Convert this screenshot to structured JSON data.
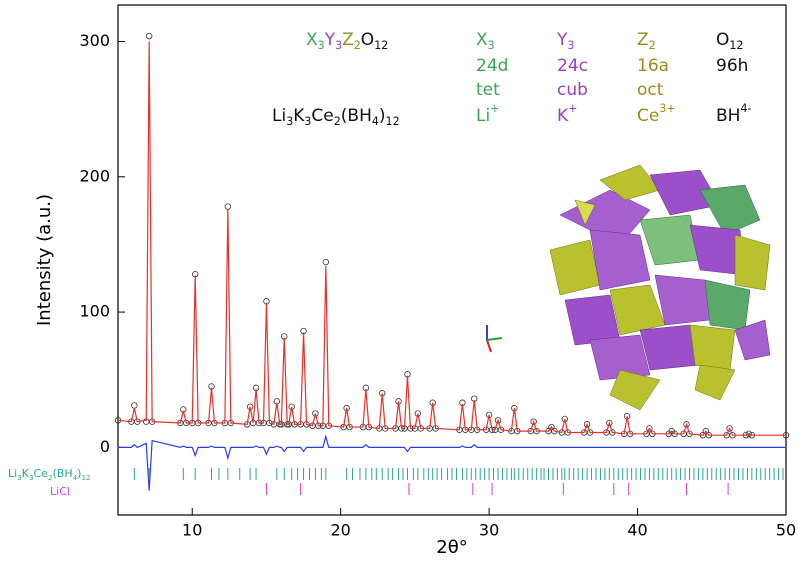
{
  "chart_data": {
    "type": "line",
    "x_label": "2θ°",
    "y_label": "Intensity (a.u.)",
    "xlim": [
      5,
      50
    ],
    "ylim": [
      -50,
      327
    ],
    "xticks": [
      10,
      20,
      30,
      40,
      50
    ],
    "yticks": [
      0,
      100,
      200,
      300
    ],
    "x": [
      5,
      5.9,
      6.1,
      6.3,
      6.9,
      7.1,
      7.3,
      9.2,
      9.4,
      9.6,
      10,
      10.2,
      10.4,
      11.1,
      11.3,
      11.5,
      12.2,
      12.4,
      12.6,
      13.7,
      13.9,
      14.1,
      14.3,
      14.5,
      14.8,
      15,
      15.2,
      15.5,
      15.7,
      15.9,
      16,
      16.2,
      16.4,
      16.5,
      16.7,
      16.9,
      17.3,
      17.5,
      17.7,
      18.1,
      18.3,
      18.5,
      18.8,
      19,
      19.2,
      20.2,
      20.4,
      20.6,
      21.5,
      21.7,
      21.9,
      22.6,
      22.8,
      23,
      23.7,
      23.9,
      24.1,
      24.3,
      24.5,
      24.7,
      25,
      25.2,
      25.4,
      26,
      26.2,
      26.4,
      28,
      28.2,
      28.4,
      28.8,
      29,
      29.2,
      29.8,
      30,
      30.2,
      30.4,
      30.6,
      30.8,
      31.5,
      31.7,
      31.9,
      32.8,
      33,
      33.2,
      34,
      34.2,
      34.4,
      34.9,
      35.1,
      35.3,
      36.4,
      36.6,
      36.8,
      37.9,
      38.1,
      38.3,
      39.1,
      39.3,
      39.5,
      40.6,
      40.8,
      41,
      42.1,
      42.3,
      42.5,
      43.1,
      43.3,
      43.5,
      44.4,
      44.6,
      44.8,
      46,
      46.2,
      46.4,
      47.3,
      47.5,
      47.7,
      50
    ],
    "series": [
      {
        "style": "markers",
        "color": "#333333",
        "values": [
          20,
          19,
          31,
          19,
          19,
          304,
          19,
          18,
          28,
          18,
          18,
          128,
          18,
          18,
          45,
          18,
          18,
          178,
          18,
          17,
          30,
          18,
          44,
          18,
          18,
          108,
          18,
          17,
          34,
          17,
          17,
          82,
          17,
          17,
          30,
          17,
          17,
          86,
          17,
          16,
          25,
          16,
          16,
          137,
          16,
          15,
          29,
          15,
          15,
          44,
          15,
          14,
          40,
          14,
          14,
          34,
          14,
          14,
          54,
          14,
          14,
          25,
          14,
          14,
          33,
          14,
          13,
          33,
          13,
          13,
          36,
          13,
          13,
          24,
          13,
          13,
          20,
          13,
          12,
          29,
          12,
          12,
          19,
          12,
          12,
          15,
          12,
          11,
          21,
          11,
          11,
          17,
          11,
          11,
          18,
          11,
          10,
          23,
          10,
          10,
          14,
          10,
          10,
          12,
          10,
          10,
          17,
          10,
          9,
          12,
          9,
          9,
          14,
          9,
          9,
          10,
          9,
          9
        ]
      },
      {
        "style": "line",
        "color": "#e8302a",
        "values": [
          20,
          19,
          29,
          19,
          20,
          300,
          19,
          18,
          27,
          18,
          18,
          127,
          18,
          18,
          44,
          18,
          18,
          176,
          18,
          17,
          30,
          18,
          43,
          18,
          18,
          107,
          18,
          17,
          33,
          17,
          17,
          81,
          17,
          17,
          30,
          17,
          17,
          85,
          17,
          16,
          25,
          16,
          16,
          134,
          16,
          15,
          29,
          15,
          15,
          43,
          15,
          14,
          40,
          14,
          14,
          34,
          14,
          14,
          53,
          14,
          14,
          25,
          14,
          14,
          33,
          14,
          13,
          32,
          13,
          13,
          35,
          13,
          13,
          24,
          13,
          13,
          20,
          13,
          12,
          29,
          12,
          12,
          19,
          12,
          12,
          15,
          12,
          11,
          21,
          11,
          11,
          17,
          11,
          11,
          18,
          11,
          10,
          23,
          10,
          10,
          14,
          10,
          10,
          12,
          10,
          10,
          17,
          10,
          9,
          12,
          9,
          9,
          14,
          9,
          9,
          10,
          9,
          9
        ]
      },
      {
        "style": "line",
        "color": "#2a3cf0",
        "values": [
          0,
          0,
          2,
          0,
          3,
          -32,
          5,
          0,
          1,
          0,
          0,
          -6,
          0,
          0,
          1,
          0,
          0,
          -8,
          0,
          0,
          0,
          0,
          1,
          0,
          0,
          -5,
          0,
          0,
          1,
          0,
          0,
          -3,
          0,
          0,
          0,
          0,
          0,
          -3,
          0,
          0,
          0,
          0,
          0,
          8,
          0,
          0,
          0,
          0,
          0,
          2,
          0,
          0,
          0,
          0,
          0,
          0,
          0,
          0,
          -3,
          0,
          0,
          0,
          0,
          0,
          0,
          0,
          0,
          1,
          0,
          0,
          2,
          0,
          0,
          0,
          0,
          0,
          0,
          0,
          0,
          0,
          0,
          0,
          0,
          0,
          0,
          0,
          0,
          0,
          0,
          0,
          0,
          0,
          0,
          0,
          0,
          0,
          0,
          0,
          0,
          0,
          0,
          0,
          0,
          0,
          0,
          0,
          0,
          0,
          0,
          0,
          0,
          0,
          0,
          0,
          0,
          0,
          0,
          0
        ]
      }
    ],
    "phases": [
      {
        "name": [
          "Li",
          "3",
          "K",
          "3",
          "Ce",
          "2",
          "(BH",
          "4",
          ")",
          "12"
        ],
        "color": "#2aa39a",
        "positions": [
          6.1,
          7.1,
          9.4,
          10.2,
          11.3,
          11.8,
          12.4,
          13.2,
          13.9,
          14.3,
          15.7,
          16.2,
          16.7,
          17.1,
          17.5,
          17.9,
          18.3,
          18.7,
          19,
          20.4,
          20.8,
          21.3,
          21.7,
          22.1,
          22.4,
          22.8,
          23.2,
          23.5,
          23.9,
          24.2,
          24.5,
          24.9,
          25.2,
          25.6,
          25.9,
          26.2,
          26.5,
          26.8,
          27.2,
          27.5,
          27.8,
          28.2,
          28.5,
          28.8,
          29.1,
          29.4,
          29.7,
          30,
          30.3,
          30.6,
          30.9,
          31.2,
          31.5,
          31.7,
          32,
          32.3,
          32.6,
          32.9,
          33.2,
          33.5,
          33.7,
          34,
          34.3,
          34.6,
          34.9,
          35.1,
          35.4,
          35.7,
          36,
          36.3,
          36.6,
          36.9,
          37.2,
          37.5,
          37.8,
          38.1,
          38.4,
          38.7,
          39,
          39.3,
          39.6,
          39.9,
          40.2,
          40.5,
          40.8,
          41.1,
          41.4,
          41.7,
          42,
          42.3,
          42.6,
          42.9,
          43.2,
          43.5,
          43.8,
          44.1,
          44.4,
          44.7,
          45,
          45.3,
          45.6,
          45.9,
          46.2,
          46.5,
          46.8,
          47.1,
          47.4,
          47.7,
          48,
          48.3,
          48.6,
          48.9,
          49.2,
          49.5,
          49.8
        ]
      },
      {
        "name": [
          "LiCl"
        ],
        "color": "#e040c0",
        "positions": [
          15,
          17.3,
          24.6,
          28.9,
          30.2,
          35,
          38.4,
          39.4,
          43.3,
          46.1
        ]
      }
    ],
    "structure_table": {
      "formula": [
        {
          "text": "X",
          "sub": "3",
          "color": "#3aa655"
        },
        {
          "text": "Y",
          "sub": "3",
          "color": "#9b3fc0"
        },
        {
          "text": "Z",
          "sub": "2",
          "color": "#9a8c1a"
        },
        {
          "text": "O",
          "sub": "12",
          "color": "#111111"
        }
      ],
      "columns": [
        {
          "symbol": "X",
          "sub": "3",
          "site": "24d",
          "coordination": "tet",
          "ion": "Li",
          "charge": "+",
          "color": "#3aa655"
        },
        {
          "symbol": "Y",
          "sub": "3",
          "site": "24c",
          "coordination": "cub",
          "ion": "K",
          "charge": "+",
          "color": "#9b3fc0"
        },
        {
          "symbol": "Z",
          "sub": "2",
          "site": "16a",
          "coordination": "oct",
          "ion": "Ce",
          "charge": "3+",
          "color": "#9a8c1a"
        },
        {
          "symbol": "O",
          "sub": "12",
          "site": "96h",
          "ion": "BH",
          "charge": "4-",
          "color": "#111111"
        }
      ],
      "compound": [
        "Li",
        "3",
        "K",
        "3",
        "Ce",
        "2",
        "(BH",
        "4",
        ")",
        "12"
      ]
    }
  }
}
